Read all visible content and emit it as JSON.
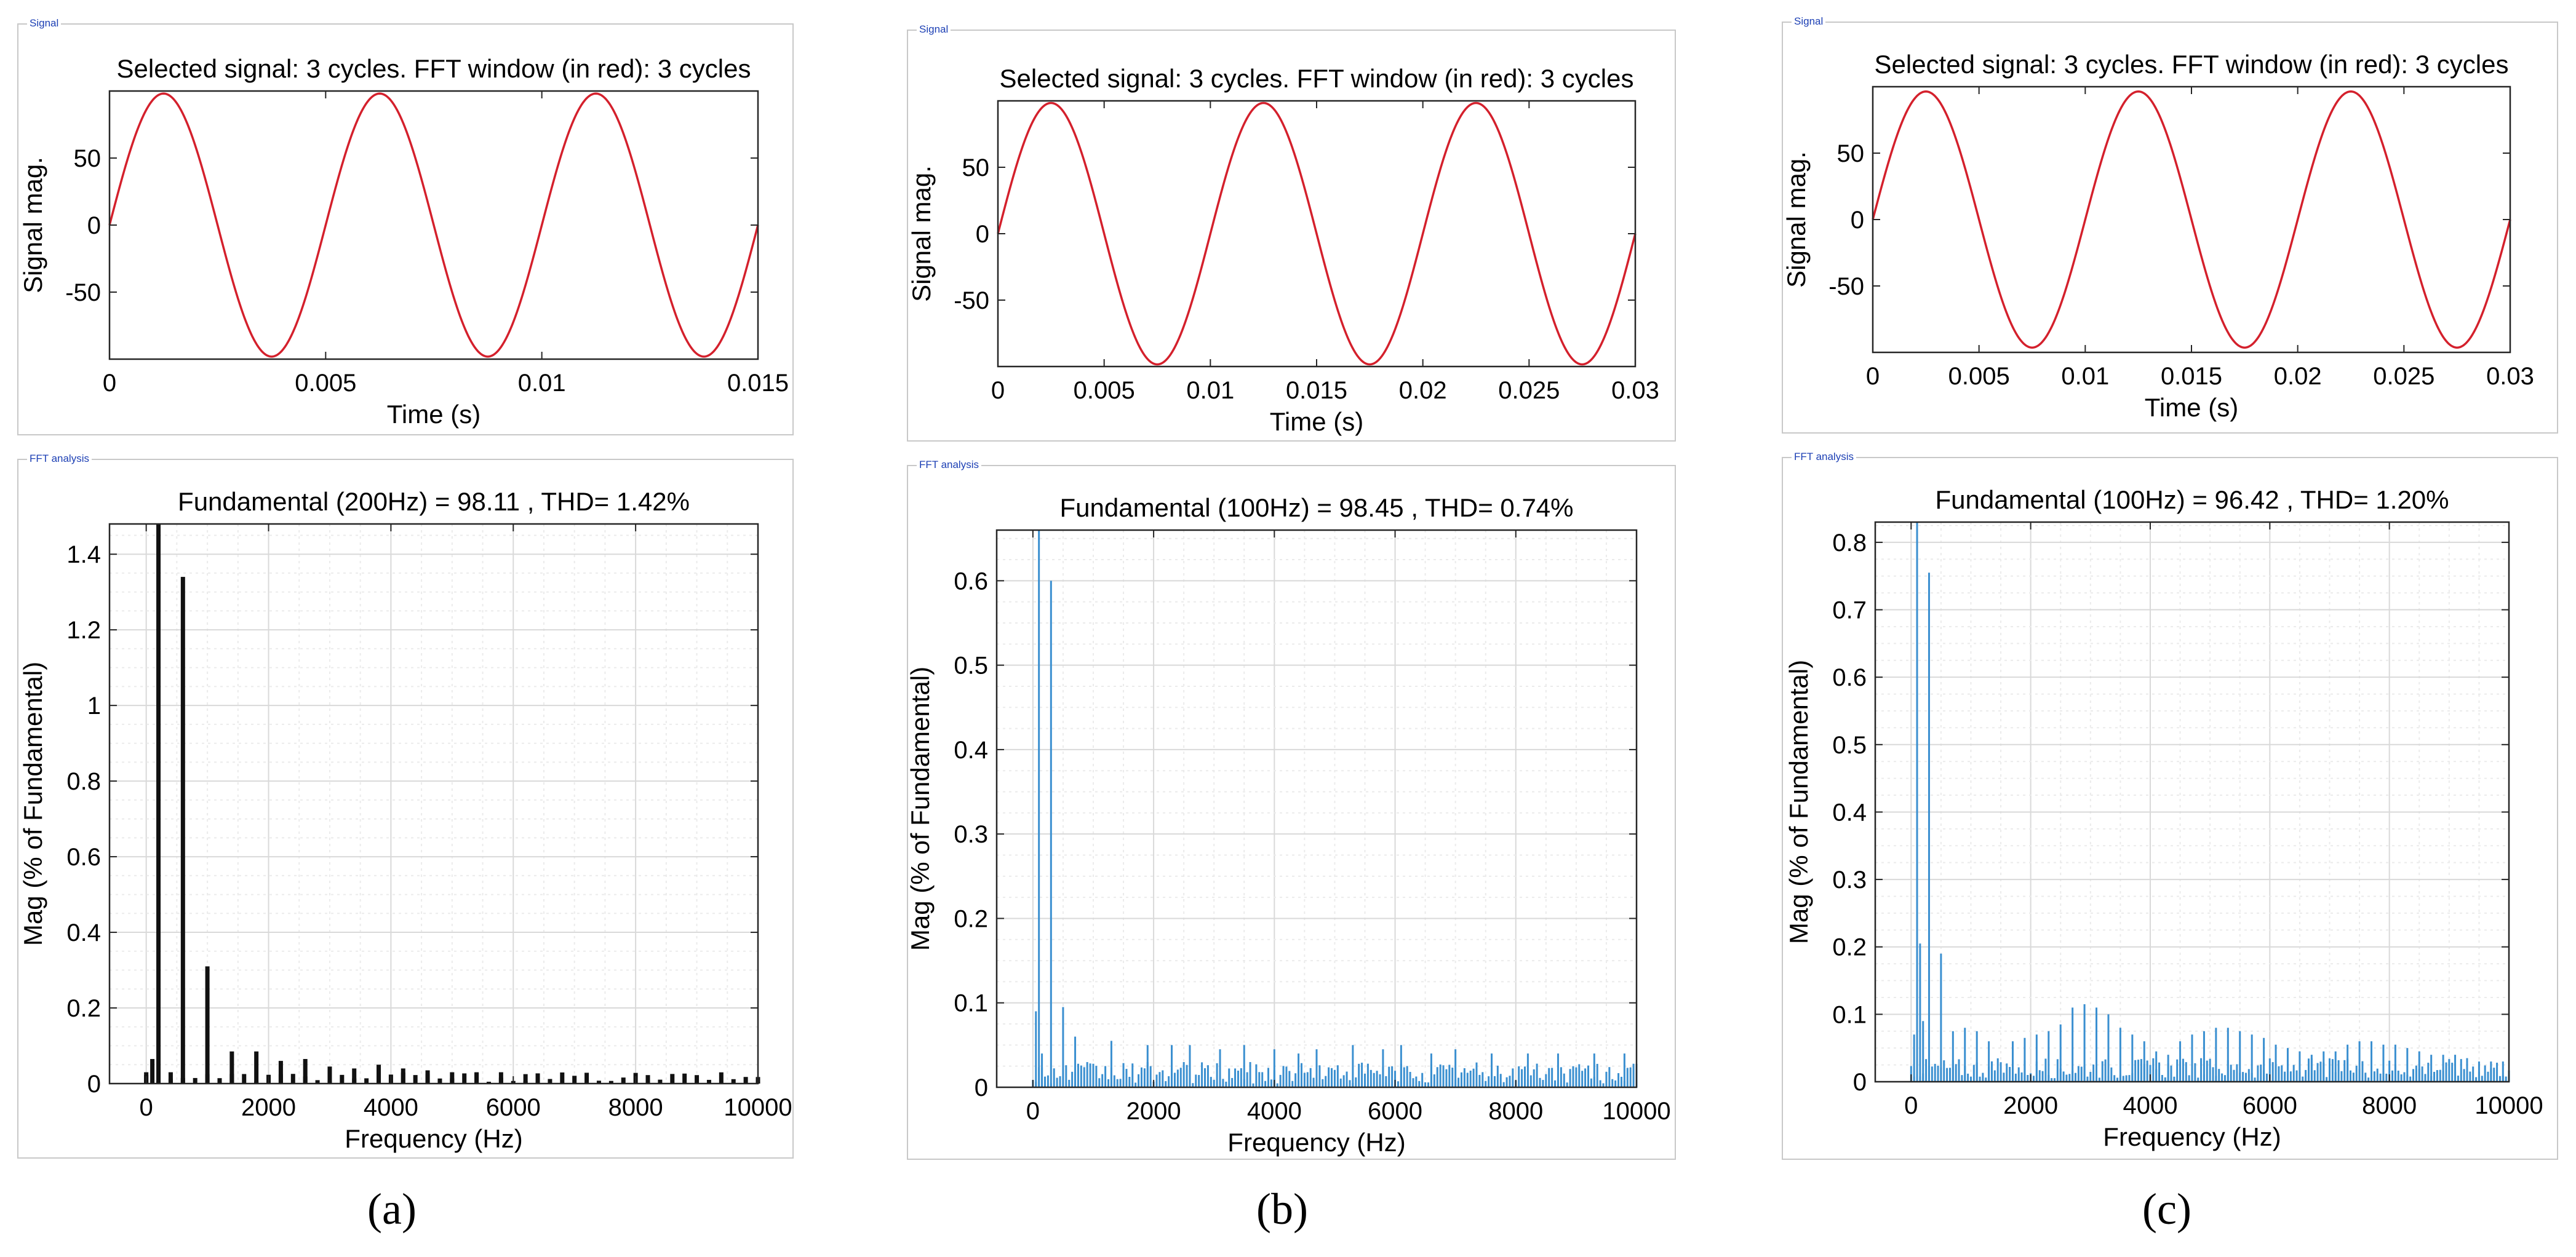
{
  "colors": {
    "signal_line": "#d4202c",
    "fft_bar_a": "#111111",
    "fft_bar_bc": "#3a8fd0",
    "grid": "#d9d9d9",
    "panel_label": "#1c3fb4"
  },
  "labels": {
    "signal_panel": "Signal",
    "fft_panel": "FFT analysis"
  },
  "captions": [
    "(a)",
    "(b)",
    "(c)"
  ],
  "chart_data": [
    {
      "id": "a-signal",
      "type": "line",
      "title": "Selected signal: 3 cycles. FFT window (in red): 3 cycles",
      "xlabel": "Time (s)",
      "ylabel": "Signal mag.",
      "xlim": [
        0,
        0.015
      ],
      "ylim": [
        -100,
        100
      ],
      "xticks": [
        0,
        0.005,
        0.01,
        0.015
      ],
      "xtick_labels": [
        "0",
        "0.005",
        "0.01",
        "0.015"
      ],
      "yticks": [
        -50,
        0,
        50
      ],
      "ytick_labels": [
        "-50",
        "0",
        "50"
      ],
      "amplitude": 98.1,
      "frequency_hz": 200
    },
    {
      "id": "a-fft",
      "type": "bar",
      "title": "Fundamental (200Hz) = 98.11 , THD= 1.42%",
      "xlabel": "Frequency (Hz)",
      "ylabel": "Mag (% of Fundamental)",
      "xlim": [
        -600,
        10000
      ],
      "ylim": [
        0,
        1.48
      ],
      "xticks": [
        0,
        2000,
        4000,
        6000,
        8000,
        10000
      ],
      "xtick_labels": [
        "0",
        "2000",
        "4000",
        "6000",
        "8000",
        "10000"
      ],
      "yticks": [
        0,
        0.2,
        0.4,
        0.6,
        0.8,
        1,
        1.2,
        1.4
      ],
      "ytick_labels": [
        "0",
        "0.2",
        "0.4",
        "0.6",
        "0.8",
        "1",
        "1.2",
        "1.4"
      ],
      "bar_spacing_hz": 200,
      "bars": [
        [
          200,
          1.48
        ],
        [
          600,
          1.34
        ],
        [
          1000,
          0.31
        ],
        [
          1400,
          0.085
        ],
        [
          1800,
          0.085
        ],
        [
          2200,
          0.06
        ],
        [
          2600,
          0.065
        ],
        [
          3000,
          0.045
        ],
        [
          3400,
          0.04
        ],
        [
          3800,
          0.05
        ],
        [
          4200,
          0.04
        ],
        [
          4600,
          0.035
        ],
        [
          5000,
          0.03
        ],
        [
          5400,
          0.03
        ],
        [
          5800,
          0.03
        ],
        [
          6200,
          0.025
        ],
        [
          0,
          0.03
        ],
        [
          100,
          0.065
        ],
        [
          400,
          0.03
        ]
      ],
      "baseline_max": 0.03
    },
    {
      "id": "b-signal",
      "type": "line",
      "title": "Selected signal: 3 cycles. FFT window (in red): 3 cycles",
      "xlabel": "Time (s)",
      "ylabel": "Signal mag.",
      "xlim": [
        0,
        0.03
      ],
      "ylim": [
        -100,
        100
      ],
      "xticks": [
        0,
        0.005,
        0.01,
        0.015,
        0.02,
        0.025,
        0.03
      ],
      "xtick_labels": [
        "0",
        "0.005",
        "0.01",
        "0.015",
        "0.02",
        "0.025",
        "0.03"
      ],
      "yticks": [
        -50,
        0,
        50
      ],
      "ytick_labels": [
        "-50",
        "0",
        "50"
      ],
      "amplitude": 98.4,
      "frequency_hz": 100
    },
    {
      "id": "b-fft",
      "type": "bar",
      "title": "Fundamental (100Hz) = 98.45 , THD= 0.74%",
      "xlabel": "Frequency (Hz)",
      "ylabel": "Mag (% of Fundamental)",
      "xlim": [
        -600,
        10000
      ],
      "ylim": [
        0,
        0.66
      ],
      "xticks": [
        0,
        2000,
        4000,
        6000,
        8000,
        10000
      ],
      "xtick_labels": [
        "0",
        "2000",
        "4000",
        "6000",
        "8000",
        "10000"
      ],
      "yticks": [
        0,
        0.1,
        0.2,
        0.3,
        0.4,
        0.5,
        0.6
      ],
      "ytick_labels": [
        "0",
        "0.1",
        "0.2",
        "0.3",
        "0.4",
        "0.5",
        "0.6"
      ],
      "bar_spacing_hz": 50,
      "bars": [
        [
          100,
          0.66
        ],
        [
          300,
          0.6
        ],
        [
          50,
          0.09
        ],
        [
          150,
          0.04
        ],
        [
          500,
          0.095
        ],
        [
          700,
          0.06
        ],
        [
          1300,
          0.055
        ],
        [
          1900,
          0.05
        ],
        [
          2300,
          0.05
        ],
        [
          2600,
          0.05
        ],
        [
          3100,
          0.045
        ],
        [
          3500,
          0.05
        ],
        [
          4000,
          0.045
        ],
        [
          4400,
          0.04
        ],
        [
          4700,
          0.045
        ],
        [
          5300,
          0.05
        ],
        [
          5800,
          0.045
        ],
        [
          6100,
          0.05
        ],
        [
          6600,
          0.04
        ],
        [
          7000,
          0.045
        ],
        [
          7600,
          0.04
        ],
        [
          8200,
          0.04
        ],
        [
          8700,
          0.04
        ],
        [
          9300,
          0.04
        ],
        [
          9800,
          0.04
        ]
      ],
      "baseline_max": 0.03
    },
    {
      "id": "c-signal",
      "type": "line",
      "title": "Selected signal: 3 cycles. FFT window (in red): 3 cycles",
      "xlabel": "Time (s)",
      "ylabel": "Signal mag.",
      "xlim": [
        0,
        0.03
      ],
      "ylim": [
        -100,
        100
      ],
      "xticks": [
        0,
        0.005,
        0.01,
        0.015,
        0.02,
        0.025,
        0.03
      ],
      "xtick_labels": [
        "0",
        "0.005",
        "0.01",
        "0.015",
        "0.02",
        "0.025",
        "0.03"
      ],
      "yticks": [
        -50,
        0,
        50
      ],
      "ytick_labels": [
        "-50",
        "0",
        "50"
      ],
      "amplitude": 96.4,
      "frequency_hz": 100
    },
    {
      "id": "c-fft",
      "type": "bar",
      "title": "Fundamental (100Hz) = 96.42 , THD= 1.20%",
      "xlabel": "Frequency (Hz)",
      "ylabel": "Mag (% of Fundamental)",
      "xlim": [
        -600,
        10000
      ],
      "ylim": [
        0,
        0.83
      ],
      "xticks": [
        0,
        2000,
        4000,
        6000,
        8000,
        10000
      ],
      "xtick_labels": [
        "0",
        "2000",
        "4000",
        "6000",
        "8000",
        "10000"
      ],
      "yticks": [
        0,
        0.1,
        0.2,
        0.3,
        0.4,
        0.5,
        0.6,
        0.7,
        0.8
      ],
      "ytick_labels": [
        "0",
        "0.1",
        "0.2",
        "0.3",
        "0.4",
        "0.5",
        "0.6",
        "0.7",
        "0.8"
      ],
      "bar_spacing_hz": 50,
      "bars": [
        [
          100,
          0.83
        ],
        [
          300,
          0.755
        ],
        [
          50,
          0.07
        ],
        [
          150,
          0.205
        ],
        [
          200,
          0.09
        ],
        [
          500,
          0.19
        ],
        [
          700,
          0.075
        ],
        [
          900,
          0.08
        ],
        [
          1100,
          0.075
        ],
        [
          1300,
          0.06
        ],
        [
          1700,
          0.06
        ],
        [
          1900,
          0.065
        ],
        [
          2100,
          0.07
        ],
        [
          2300,
          0.075
        ],
        [
          2500,
          0.085
        ],
        [
          2700,
          0.11
        ],
        [
          2900,
          0.115
        ],
        [
          3100,
          0.11
        ],
        [
          3300,
          0.1
        ],
        [
          3500,
          0.08
        ],
        [
          3700,
          0.07
        ],
        [
          3900,
          0.06
        ],
        [
          4100,
          0.045
        ],
        [
          4300,
          0.04
        ],
        [
          4500,
          0.06
        ],
        [
          4700,
          0.07
        ],
        [
          4900,
          0.075
        ],
        [
          5100,
          0.08
        ],
        [
          5300,
          0.08
        ],
        [
          5500,
          0.075
        ],
        [
          5700,
          0.07
        ],
        [
          5900,
          0.065
        ],
        [
          6100,
          0.055
        ],
        [
          6300,
          0.05
        ],
        [
          6500,
          0.045
        ],
        [
          6700,
          0.04
        ],
        [
          6900,
          0.045
        ],
        [
          7100,
          0.045
        ],
        [
          7300,
          0.055
        ],
        [
          7500,
          0.06
        ],
        [
          7700,
          0.06
        ],
        [
          7900,
          0.055
        ],
        [
          8100,
          0.055
        ],
        [
          8300,
          0.05
        ],
        [
          8500,
          0.045
        ],
        [
          8700,
          0.04
        ],
        [
          8900,
          0.04
        ],
        [
          9100,
          0.04
        ],
        [
          9300,
          0.035
        ],
        [
          9500,
          0.03
        ],
        [
          9700,
          0.03
        ],
        [
          9900,
          0.03
        ]
      ],
      "baseline_max": 0.035
    }
  ]
}
